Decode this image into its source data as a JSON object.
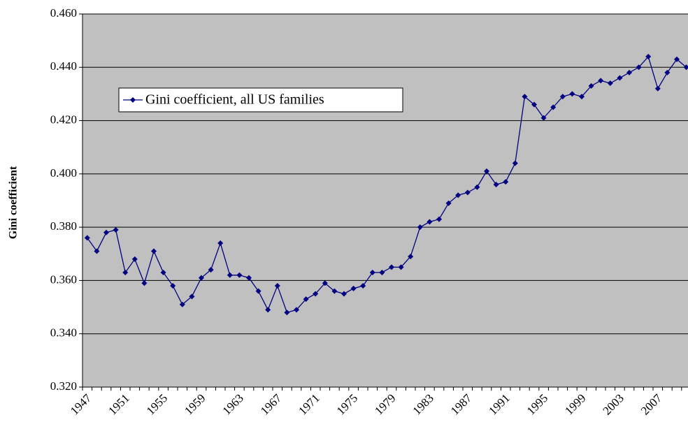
{
  "chart_data": {
    "type": "line",
    "y_label": "Gini coefficient",
    "categories": [
      "1947",
      null,
      null,
      null,
      "1951",
      null,
      null,
      null,
      "1955",
      null,
      null,
      null,
      "1959",
      null,
      null,
      null,
      "1963",
      null,
      null,
      null,
      "1967",
      null,
      null,
      null,
      "1971",
      null,
      null,
      null,
      "1975",
      null,
      null,
      null,
      "1979",
      null,
      null,
      null,
      "1983",
      null,
      null,
      null,
      "1987",
      null,
      null,
      null,
      "1991",
      null,
      null,
      null,
      "1995",
      null,
      null,
      null,
      "1999",
      null,
      null,
      null,
      "2003",
      null,
      null,
      null,
      "2007",
      null,
      null,
      null
    ],
    "series": [
      {
        "name": "Gini coefficient, all US families",
        "color": "#000080",
        "values": [
          0.376,
          0.371,
          0.378,
          0.379,
          0.363,
          0.368,
          0.359,
          0.371,
          0.363,
          0.358,
          0.351,
          0.354,
          0.361,
          0.364,
          0.374,
          0.362,
          0.362,
          0.361,
          0.356,
          0.349,
          0.358,
          0.348,
          0.349,
          0.353,
          0.355,
          0.359,
          0.356,
          0.355,
          0.357,
          0.358,
          0.363,
          0.363,
          0.365,
          0.365,
          0.369,
          0.38,
          0.382,
          0.383,
          0.389,
          0.392,
          0.393,
          0.395,
          0.401,
          0.396,
          0.397,
          0.404,
          0.429,
          0.426,
          0.421,
          0.425,
          0.429,
          0.43,
          0.429,
          0.433,
          0.435,
          0.434,
          0.436,
          0.438,
          0.44,
          0.444,
          0.432,
          0.438,
          0.443,
          0.44
        ]
      }
    ],
    "ylim": [
      0.32,
      0.46
    ],
    "yticks": [
      {
        "value": 0.32,
        "label": "0.320"
      },
      {
        "value": 0.34,
        "label": "0.340"
      },
      {
        "value": 0.36,
        "label": "0.360"
      },
      {
        "value": 0.38,
        "label": "0.380"
      },
      {
        "value": 0.4,
        "label": "0.400"
      },
      {
        "value": 0.42,
        "label": "0.420"
      },
      {
        "value": 0.44,
        "label": "0.440"
      },
      {
        "value": 0.46,
        "label": "0.460"
      }
    ],
    "grid": true,
    "background": "#c0c0c0",
    "legend": "upper left"
  }
}
